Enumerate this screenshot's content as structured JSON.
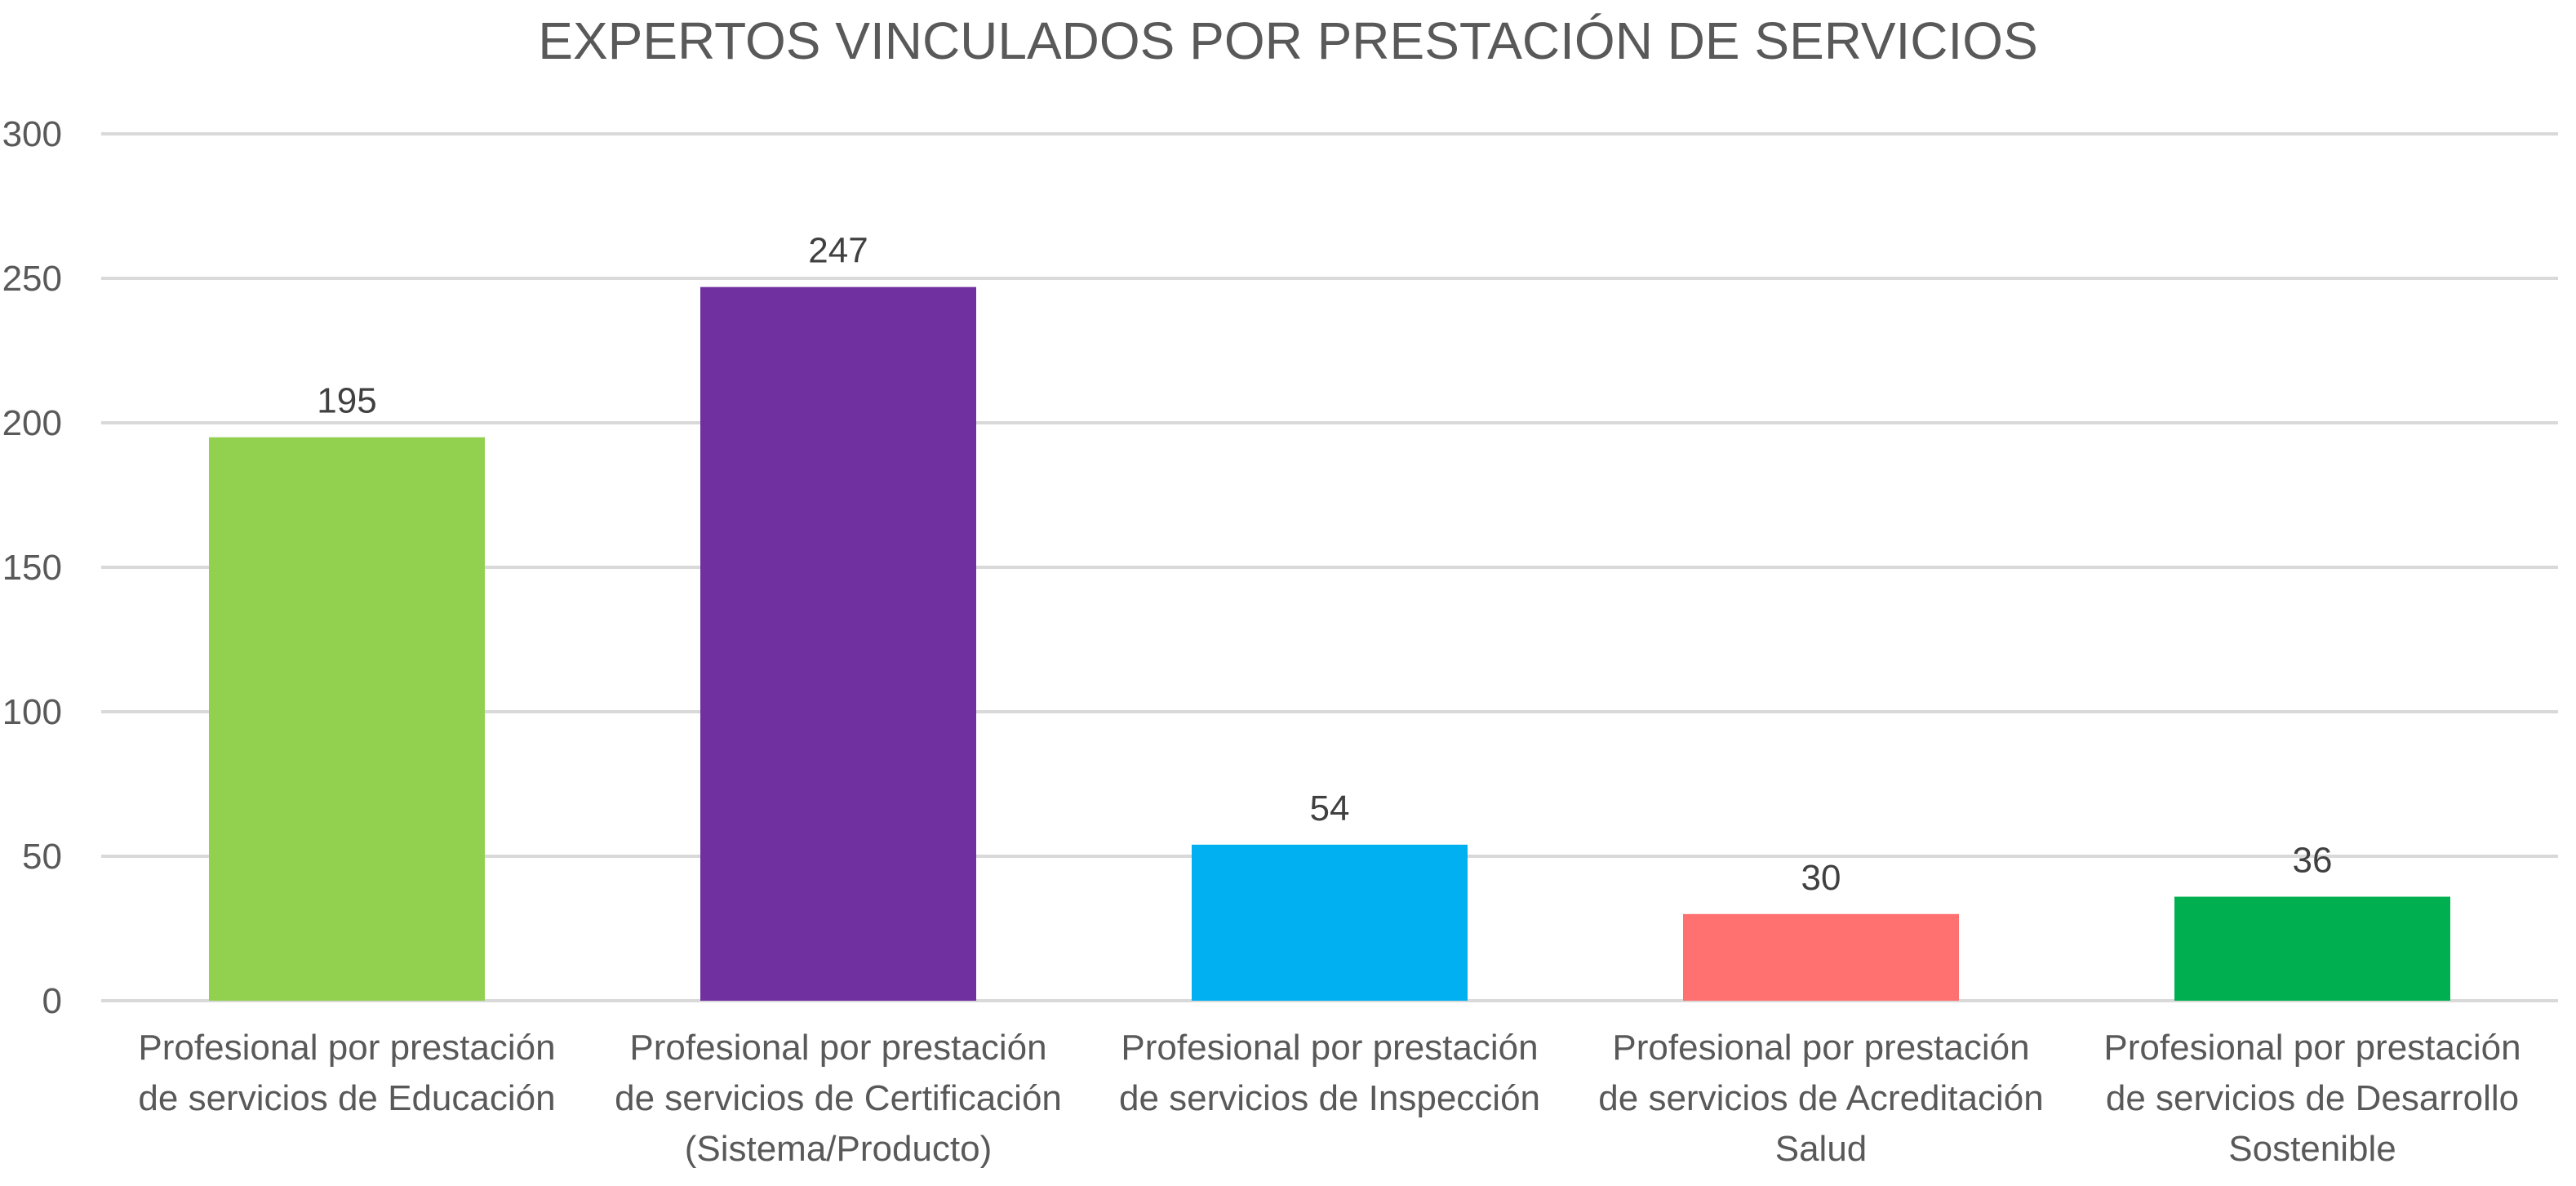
{
  "chart_data": {
    "type": "bar",
    "title": "EXPERTOS VINCULADOS POR PRESTACIÓN DE SERVICIOS",
    "xlabel": "",
    "ylabel": "",
    "ylim": [
      0,
      300
    ],
    "yticks": [
      0,
      50,
      100,
      150,
      200,
      250,
      300
    ],
    "grid": true,
    "legend": "none",
    "categories": [
      [
        "Profesional por prestación",
        "de servicios de Educación"
      ],
      [
        "Profesional por prestación",
        "de servicios de Certificación",
        "(Sistema/Producto)"
      ],
      [
        "Profesional por prestación",
        "de servicios de Inspección"
      ],
      [
        "Profesional por prestación",
        "de servicios de Acreditación",
        "Salud"
      ],
      [
        "Profesional por prestación",
        "de servicios de Desarrollo",
        "Sostenible"
      ]
    ],
    "values": [
      195,
      247,
      54,
      30,
      36
    ],
    "colors": [
      "#92d050",
      "#7030a0",
      "#00b0f0",
      "#ff7171",
      "#00b050"
    ]
  }
}
